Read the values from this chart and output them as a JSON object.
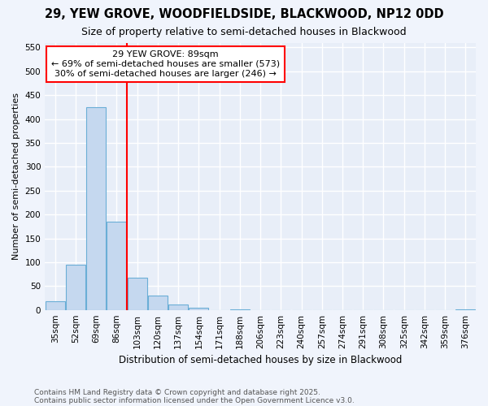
{
  "title": "29, YEW GROVE, WOODFIELDSIDE, BLACKWOOD, NP12 0DD",
  "subtitle": "Size of property relative to semi-detached houses in Blackwood",
  "xlabel": "Distribution of semi-detached houses by size in Blackwood",
  "ylabel": "Number of semi-detached properties",
  "bins": [
    "35sqm",
    "52sqm",
    "69sqm",
    "86sqm",
    "103sqm",
    "120sqm",
    "137sqm",
    "154sqm",
    "171sqm",
    "188sqm",
    "206sqm",
    "223sqm",
    "240sqm",
    "257sqm",
    "274sqm",
    "291sqm",
    "308sqm",
    "325sqm",
    "342sqm",
    "359sqm",
    "376sqm"
  ],
  "values": [
    18,
    95,
    425,
    185,
    68,
    30,
    12,
    5,
    0,
    1,
    0,
    0,
    0,
    0,
    0,
    0,
    0,
    0,
    0,
    0,
    1
  ],
  "bar_color": "#c5d8ef",
  "bar_edge_color": "#6aaed6",
  "red_line_x": 3.5,
  "annotation_title": "29 YEW GROVE: 89sqm",
  "annotation_line1": "← 69% of semi-detached houses are smaller (573)",
  "annotation_line2": "30% of semi-detached houses are larger (246) →",
  "ylim": [
    0,
    560
  ],
  "yticks": [
    0,
    50,
    100,
    150,
    200,
    250,
    300,
    350,
    400,
    450,
    500,
    550
  ],
  "footnote1": "Contains HM Land Registry data © Crown copyright and database right 2025.",
  "footnote2": "Contains public sector information licensed under the Open Government Licence v3.0.",
  "bg_color": "#f0f4fc",
  "plot_bg_color": "#e8eef8",
  "grid_color": "#ffffff",
  "title_fontsize": 10.5,
  "subtitle_fontsize": 9,
  "annotation_fontsize": 8,
  "ylabel_fontsize": 8,
  "xlabel_fontsize": 8.5,
  "tick_fontsize": 7.5,
  "footnote_fontsize": 6.5
}
